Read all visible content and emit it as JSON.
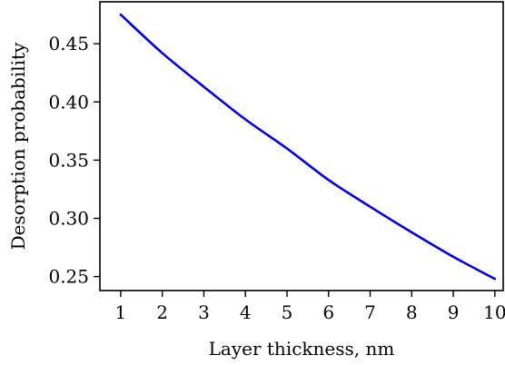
{
  "chart_data": {
    "type": "line",
    "title": "",
    "xlabel": "Layer thickness, nm",
    "ylabel": "Desorption probability",
    "xlim": [
      0.5,
      10.2
    ],
    "ylim": [
      0.238,
      0.486
    ],
    "xticks": [
      1,
      2,
      3,
      4,
      5,
      6,
      7,
      8,
      9,
      10
    ],
    "yticks": [
      0.25,
      0.3,
      0.35,
      0.4,
      0.45
    ],
    "ytick_labels": [
      "0.25",
      "0.30",
      "0.35",
      "0.40",
      "0.45"
    ],
    "grid": false,
    "series": [
      {
        "color": "#0000ee",
        "x": [
          1,
          2,
          3,
          4,
          5,
          6,
          7,
          8,
          9,
          10
        ],
        "y": [
          0.475,
          0.442,
          0.413,
          0.385,
          0.36,
          0.333,
          0.31,
          0.288,
          0.267,
          0.248
        ]
      }
    ]
  }
}
